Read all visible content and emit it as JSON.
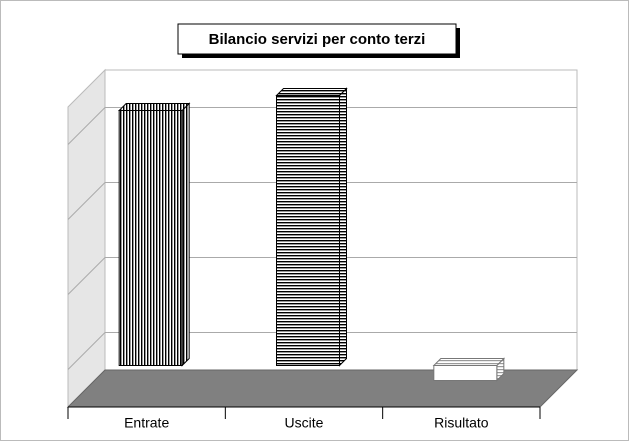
{
  "chart_data": {
    "type": "bar3d",
    "title": "Bilancio servizi per conto terzi",
    "categories": [
      "Entrate",
      "Uscite",
      "Risultato"
    ],
    "values": [
      340,
      360,
      -20
    ],
    "ylim": [
      -50,
      350
    ],
    "yticks": [
      0,
      100,
      200,
      300
    ],
    "grid": true,
    "colors": [
      "#000000",
      "#000000",
      "#777777"
    ]
  }
}
